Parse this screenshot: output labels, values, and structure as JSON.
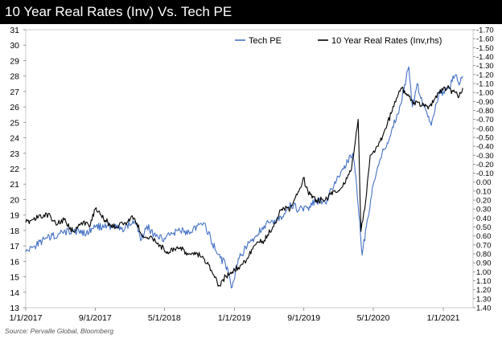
{
  "chart_data": {
    "type": "line",
    "title": "10 Year Real Rates (Inv) Vs. Tech PE",
    "source": "Source: Pervalle Global, Bloomberg",
    "x_tick_labels": [
      "1/1/2017",
      "9/1/2017",
      "5/1/2018",
      "1/1/2019",
      "9/1/2019",
      "5/1/2020",
      "1/1/2021"
    ],
    "x_tick_dates": [
      "2017-01-01",
      "2017-09-01",
      "2018-05-01",
      "2019-01-01",
      "2019-09-01",
      "2020-05-01",
      "2021-01-01"
    ],
    "xlim": [
      "2017-01-01",
      "2021-04-15"
    ],
    "left_axis": {
      "ylim": [
        13,
        31
      ],
      "ticks": [
        "31",
        "30",
        "29",
        "28",
        "27",
        "26",
        "25",
        "24",
        "23",
        "22",
        "21",
        "20",
        "19",
        "18",
        "17",
        "16",
        "15",
        "14",
        "13"
      ]
    },
    "right_axis": {
      "inverted": true,
      "ylim": [
        1.4,
        -1.7
      ],
      "ticks": [
        "-1.70",
        "-1.60",
        "-1.50",
        "-1.40",
        "-1.30",
        "-1.20",
        "-1.10",
        "-1.00",
        "-0.90",
        "-0.80",
        "-0.70",
        "-0.60",
        "-0.50",
        "-0.40",
        "-0.30",
        "-0.20",
        "-0.10",
        "0.00",
        "0.10",
        "0.20",
        "0.30",
        "0.40",
        "0.50",
        "0.60",
        "0.70",
        "0.80",
        "0.90",
        "1.00",
        "1.10",
        "1.20",
        "1.30",
        "1.40"
      ]
    },
    "legend_position": "top-right",
    "grid": false,
    "series": [
      {
        "name": "Tech PE",
        "axis": "left",
        "color": "#4472c4",
        "x": [
          "2017-01-01",
          "2017-02-01",
          "2017-03-15",
          "2017-05-01",
          "2017-06-15",
          "2017-08-01",
          "2017-09-01",
          "2017-10-15",
          "2017-12-01",
          "2018-01-20",
          "2018-02-10",
          "2018-03-01",
          "2018-04-01",
          "2018-05-01",
          "2018-06-15",
          "2018-08-01",
          "2018-09-15",
          "2018-10-10",
          "2018-11-01",
          "2018-12-01",
          "2018-12-24",
          "2019-01-15",
          "2019-02-15",
          "2019-03-15",
          "2019-04-15",
          "2019-05-15",
          "2019-06-15",
          "2019-07-15",
          "2019-08-15",
          "2019-09-15",
          "2019-10-15",
          "2019-11-15",
          "2019-12-15",
          "2020-01-15",
          "2020-02-19",
          "2020-03-01",
          "2020-03-12",
          "2020-03-23",
          "2020-04-10",
          "2020-05-01",
          "2020-06-01",
          "2020-07-01",
          "2020-08-01",
          "2020-09-02",
          "2020-09-15",
          "2020-10-01",
          "2020-10-20",
          "2020-11-01",
          "2020-11-20",
          "2020-12-15",
          "2021-01-01",
          "2021-01-20",
          "2021-02-10",
          "2021-03-01",
          "2021-03-10"
        ],
        "values": [
          16.6,
          17.0,
          17.5,
          17.8,
          18.0,
          17.8,
          18.2,
          18.3,
          18.1,
          18.6,
          17.4,
          18.3,
          17.6,
          17.5,
          18.0,
          17.9,
          18.5,
          17.5,
          16.5,
          15.8,
          14.3,
          16.2,
          17.0,
          17.6,
          18.3,
          18.6,
          18.7,
          19.8,
          19.3,
          19.5,
          19.9,
          19.8,
          20.9,
          22.0,
          23.0,
          21.5,
          19.0,
          16.4,
          18.7,
          21.0,
          23.0,
          24.2,
          26.0,
          28.6,
          26.0,
          27.5,
          26.2,
          25.8,
          24.8,
          26.7,
          27.0,
          27.2,
          28.0,
          27.6,
          28.0
        ]
      },
      {
        "name": "10 Year Real Rates (Inv,rhs)",
        "axis": "right",
        "color": "#000000",
        "x": [
          "2017-01-01",
          "2017-02-15",
          "2017-03-15",
          "2017-04-15",
          "2017-05-15",
          "2017-06-15",
          "2017-07-15",
          "2017-08-15",
          "2017-09-01",
          "2017-10-15",
          "2017-11-15",
          "2017-12-15",
          "2018-01-15",
          "2018-02-15",
          "2018-03-15",
          "2018-04-15",
          "2018-05-15",
          "2018-06-15",
          "2018-07-15",
          "2018-08-15",
          "2018-09-15",
          "2018-10-15",
          "2018-11-08",
          "2018-12-01",
          "2018-12-24",
          "2019-01-15",
          "2019-02-15",
          "2019-03-15",
          "2019-04-15",
          "2019-05-15",
          "2019-06-15",
          "2019-07-15",
          "2019-08-15",
          "2019-08-30",
          "2019-09-15",
          "2019-10-15",
          "2019-11-15",
          "2019-12-15",
          "2020-01-15",
          "2020-02-15",
          "2020-02-28",
          "2020-03-09",
          "2020-03-19",
          "2020-04-01",
          "2020-04-20",
          "2020-05-15",
          "2020-06-15",
          "2020-07-15",
          "2020-08-06",
          "2020-09-15",
          "2020-10-15",
          "2020-11-15",
          "2020-12-15",
          "2021-01-15",
          "2021-02-10",
          "2021-02-25",
          "2021-03-10"
        ],
        "values": [
          0.45,
          0.38,
          0.35,
          0.45,
          0.42,
          0.55,
          0.45,
          0.48,
          0.3,
          0.45,
          0.5,
          0.45,
          0.4,
          0.6,
          0.6,
          0.7,
          0.8,
          0.72,
          0.78,
          0.78,
          0.85,
          1.0,
          1.15,
          1.05,
          1.0,
          0.95,
          0.85,
          0.7,
          0.65,
          0.5,
          0.3,
          0.3,
          0.1,
          -0.05,
          0.1,
          0.2,
          0.2,
          0.1,
          0.05,
          -0.15,
          -0.45,
          -0.7,
          0.55,
          0.3,
          -0.3,
          -0.4,
          -0.6,
          -0.9,
          -1.05,
          -0.9,
          -0.85,
          -0.85,
          -1.0,
          -1.05,
          -1.0,
          -0.95,
          -1.05
        ]
      }
    ]
  }
}
